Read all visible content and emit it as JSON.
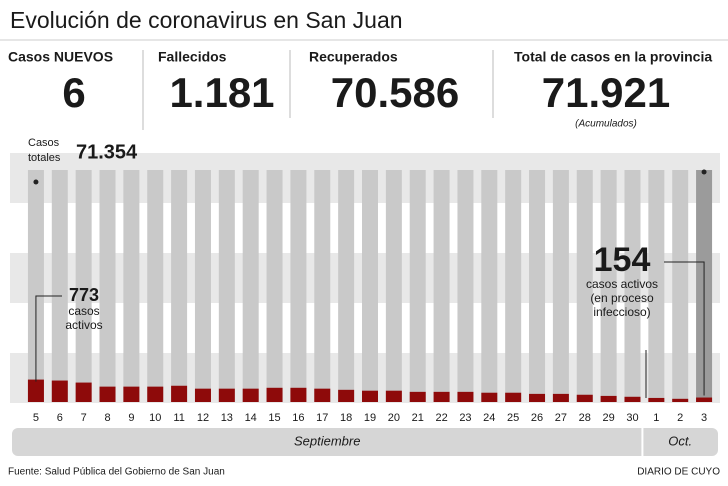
{
  "header": {
    "title": "Evolución de coronavirus en San Juan"
  },
  "stats": [
    {
      "label": "Casos NUEVOS",
      "value": "6",
      "color": "#e3141f"
    },
    {
      "label": "Fallecidos",
      "value": "1.181",
      "color": "#1a1a1a"
    },
    {
      "label": "Recuperados",
      "value": "70.586",
      "color": "#1aa3dc"
    },
    {
      "label": "Total de casos en la provincia",
      "value": "71.921",
      "color": "#e3141f",
      "note": "(Acumulados)"
    }
  ],
  "chart_data": {
    "type": "bar",
    "categories": [
      "5",
      "6",
      "7",
      "8",
      "9",
      "10",
      "11",
      "12",
      "13",
      "14",
      "15",
      "16",
      "17",
      "18",
      "19",
      "20",
      "21",
      "22",
      "23",
      "24",
      "25",
      "26",
      "27",
      "28",
      "29",
      "30",
      "1",
      "2",
      "3"
    ],
    "values": [
      773,
      740,
      670,
      530,
      530,
      530,
      560,
      460,
      460,
      460,
      490,
      490,
      460,
      420,
      390,
      390,
      350,
      350,
      350,
      320,
      320,
      280,
      280,
      250,
      210,
      180,
      140,
      110,
      154
    ],
    "color": "#8e0a0a",
    "column_color": "#c9c9c9",
    "last_column_color": "#9b9b9b",
    "ylim": [
      0,
      8000
    ],
    "months": [
      "Septiembre",
      "Oct."
    ],
    "total_label": [
      "Casos",
      "totales"
    ],
    "total_value": "71.354",
    "first_note": [
      "casos",
      "activos"
    ],
    "last_note": [
      "casos activos",
      "(en proceso",
      "infeccioso)"
    ]
  },
  "footer": {
    "source": "Fuente: Salud Pública del Gobierno de San Juan",
    "brand": "DIARIO DE CUYO"
  }
}
